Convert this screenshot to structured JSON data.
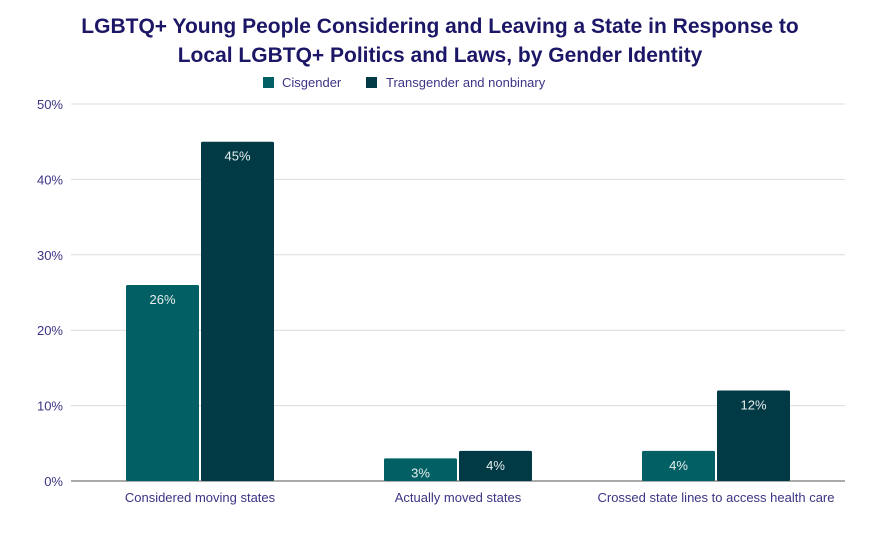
{
  "chart_data": {
    "type": "bar",
    "title": "LGBTQ+ Young People Considering and Leaving a State in Response to Local LGBTQ+ Politics and Laws, by Gender Identity",
    "title_lines": [
      "LGBTQ+ Young People Considering and Leaving a State in Response to",
      "Local LGBTQ+ Politics and Laws, by Gender Identity"
    ],
    "categories": [
      "Considered moving states",
      "Actually moved states",
      "Crossed state lines to access health care"
    ],
    "series": [
      {
        "name": "Cisgender",
        "values": [
          26,
          3,
          4
        ],
        "labels": [
          "26%",
          "3%",
          "4%"
        ],
        "color": "#025f63"
      },
      {
        "name": "Transgender and nonbinary",
        "values": [
          45,
          4,
          12
        ],
        "labels": [
          "45%",
          "4%",
          "12%"
        ],
        "color": "#013a45"
      }
    ],
    "xlabel": "",
    "ylabel": "",
    "ylim": [
      0,
      50
    ],
    "yticks": [
      0,
      10,
      20,
      30,
      40,
      50
    ],
    "ytick_labels": [
      "0%",
      "10%",
      "20%",
      "30%",
      "40%",
      "50%"
    ],
    "grid": true,
    "legend_position": "top"
  }
}
